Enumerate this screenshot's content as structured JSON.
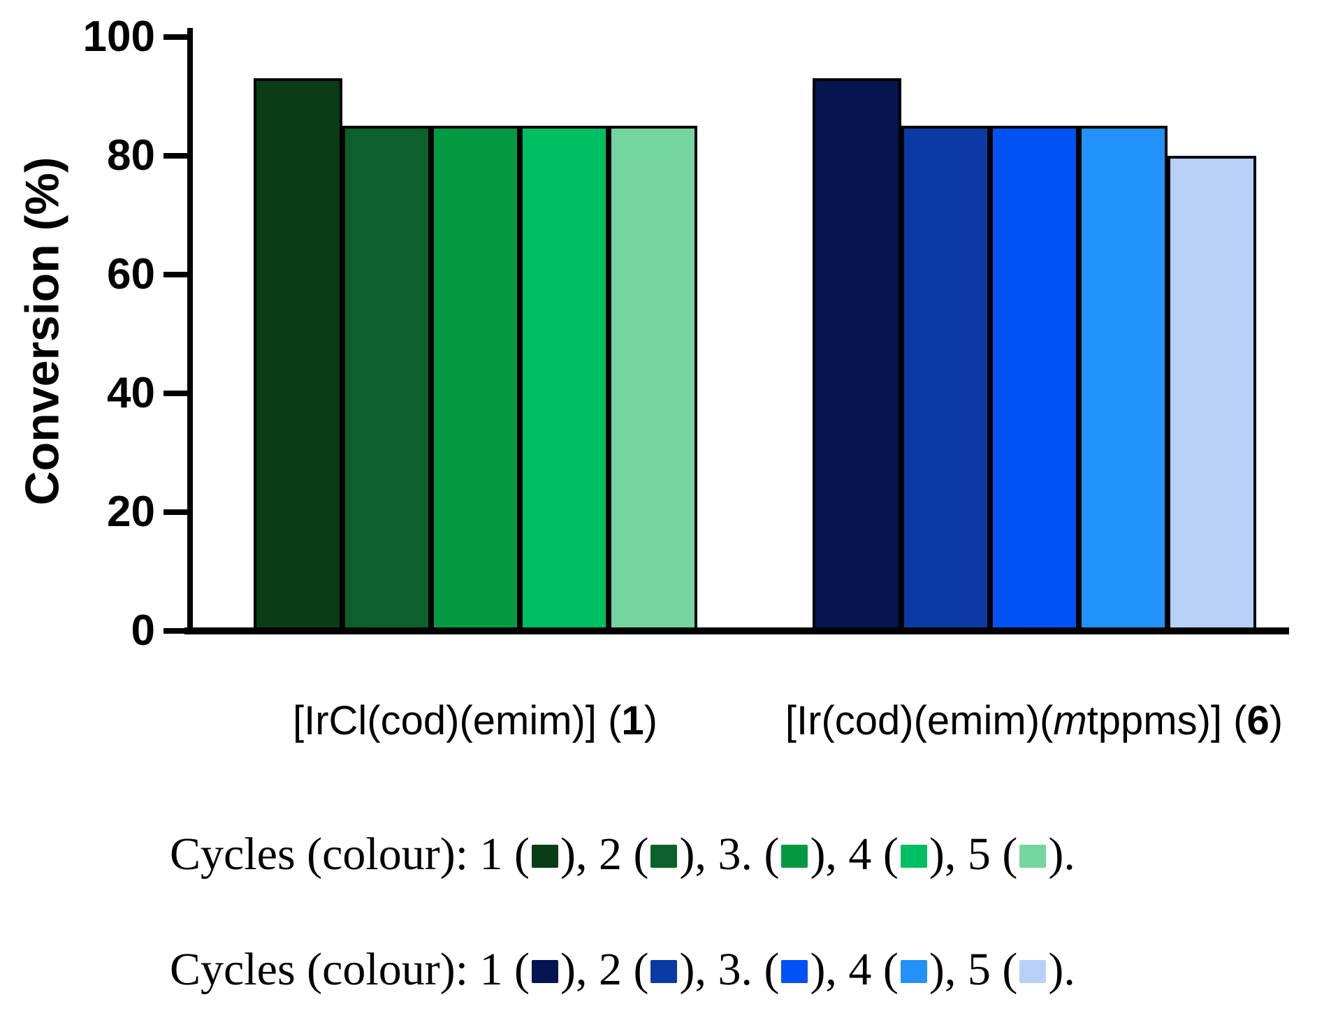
{
  "chart_data": {
    "type": "bar",
    "title": "",
    "ylabel": "Conversion (%)",
    "xlabel": "",
    "ylim": [
      0,
      100
    ],
    "yticks": [
      0,
      20,
      40,
      60,
      80,
      100
    ],
    "grid": false,
    "legend_position": "below-chart",
    "categories": [
      "[IrCl(cod)(emim)] (1)",
      "[Ir(cod)(emim)(mtppms)] (6)"
    ],
    "cycles": [
      "1",
      "2",
      "3",
      "4",
      "5"
    ],
    "values_by_category": [
      [
        93,
        85,
        85,
        85,
        85
      ],
      [
        93,
        85,
        85,
        85,
        80
      ]
    ],
    "colors_by_category": [
      [
        "#0a3d16",
        "#0b6129",
        "#039a43",
        "#00bf63",
        "#74d59e"
      ],
      [
        "#061550",
        "#0b3aa5",
        "#0052f5",
        "#2291f9",
        "#b8d0f8"
      ]
    ]
  },
  "xlabel_rich": [
    {
      "segments": {
        "s0": "[IrCl(cod)(emim)] (",
        "s1": "1",
        "s2": ")"
      }
    },
    {
      "segments": {
        "s0": "[Ir(cod)(emim)(",
        "s1": "m",
        "s2": "tppms)] (",
        "s3": "6",
        "s4": ")"
      }
    }
  ],
  "legend_lines": [
    {
      "series": "cycles-green-complex-1",
      "segments": {
        "s0": "Cycles (colour): 1 (",
        "s1": "), 2 (",
        "s2": "), 3. (",
        "s3": "), 4 (",
        "s4": "), 5 (",
        "s5": ")."
      }
    },
    {
      "series": "cycles-blue-complex-6",
      "segments": {
        "s0": "Cycles (colour): 1 (",
        "s1": "), 2 (",
        "s2": "), 3. (",
        "s3": "), 4 (",
        "s4": "), 5 (",
        "s5": ")."
      }
    }
  ]
}
